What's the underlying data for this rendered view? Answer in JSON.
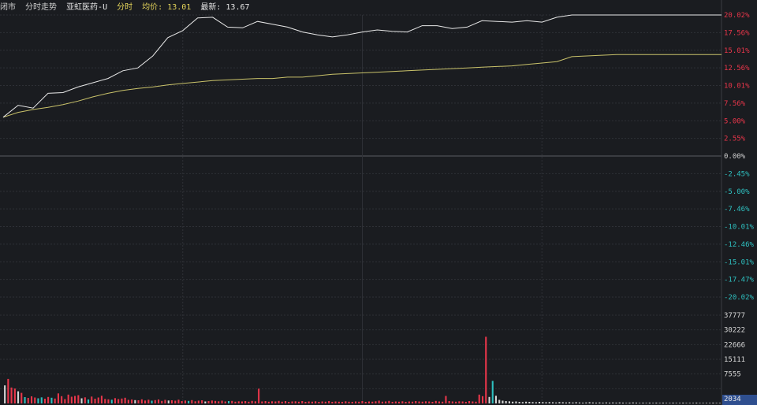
{
  "header": {
    "status": "闭市",
    "mode": "分时走势",
    "stock_name": "亚虹医药-U",
    "fenshi_label": "分时",
    "avg_label": "均价: 13.01",
    "last_label": "最新: 13.67"
  },
  "colors": {
    "background": "#1a1c20",
    "grid": "#2e3036",
    "price_line": "#e8e8e8",
    "avg_line": "#c9c26a",
    "up": "#e8364a",
    "down": "#2ec0c0",
    "neutral": "#d6d6d6",
    "zero": "#cfcfcf"
  },
  "chart_data": [
    {
      "type": "line",
      "title": "分时走势",
      "y_axis_labels": [
        "20.02%",
        "17.56%",
        "15.01%",
        "12.56%",
        "10.01%",
        "7.56%",
        "5.00%",
        "2.55%",
        "0.00%",
        "-2.45%",
        "-5.00%",
        "-7.46%",
        "-10.01%",
        "-12.46%",
        "-15.01%",
        "-17.47%",
        "-20.02%"
      ],
      "ylim": [
        -20.02,
        20.02
      ],
      "x": [
        0,
        5,
        10,
        15,
        20,
        25,
        30,
        35,
        40,
        45,
        50,
        55,
        60,
        65,
        70,
        75,
        80,
        85,
        90,
        95,
        100,
        105,
        110,
        115,
        120,
        125,
        130,
        135,
        140,
        145,
        150,
        155,
        160,
        165,
        170,
        175,
        180,
        185,
        190,
        195,
        200,
        205,
        210,
        215,
        220,
        225,
        230,
        235,
        240
      ],
      "series": [
        {
          "values": [
            5.5,
            7.2,
            6.8,
            8.9,
            9.0,
            9.8,
            10.4,
            11.0,
            12.1,
            12.5,
            14.2,
            16.8,
            17.8,
            19.6,
            19.7,
            18.3,
            18.2,
            19.1,
            18.7,
            18.3,
            17.6,
            17.2,
            16.9,
            17.2,
            17.6,
            17.9,
            17.7,
            17.6,
            18.5,
            18.5,
            18.1,
            18.3,
            19.2,
            19.1,
            19.0,
            19.2,
            19.0,
            19.7,
            20.02,
            20.02,
            20.02,
            20.02,
            20.02,
            20.02,
            20.02,
            20.02,
            20.02,
            20.02,
            20.02
          ]
        },
        {
          "values": [
            5.5,
            6.2,
            6.6,
            6.9,
            7.3,
            7.8,
            8.4,
            8.9,
            9.3,
            9.6,
            9.8,
            10.1,
            10.3,
            10.5,
            10.7,
            10.8,
            10.9,
            11.0,
            11.0,
            11.2,
            11.2,
            11.4,
            11.6,
            11.7,
            11.8,
            11.9,
            12.0,
            12.1,
            12.2,
            12.3,
            12.4,
            12.5,
            12.6,
            12.7,
            12.8,
            13.0,
            13.2,
            13.4,
            14.1,
            14.2,
            14.3,
            14.4,
            14.4,
            14.4,
            14.4,
            14.4,
            14.4,
            14.4,
            14.4
          ]
        }
      ]
    },
    {
      "type": "bar",
      "y_axis_labels": [
        "37777",
        "30222",
        "22666",
        "15111",
        "7555",
        "2034"
      ],
      "ylim": [
        0,
        45000
      ],
      "bars": [
        {
          "v": 9200,
          "c": "neutral"
        },
        {
          "v": 12500,
          "c": "up"
        },
        {
          "v": 8100,
          "c": "up"
        },
        {
          "v": 7600,
          "c": "up"
        },
        {
          "v": 6200,
          "c": "neutral"
        },
        {
          "v": 5400,
          "c": "up"
        },
        {
          "v": 3200,
          "c": "down"
        },
        {
          "v": 2800,
          "c": "up"
        },
        {
          "v": 3600,
          "c": "up"
        },
        {
          "v": 3000,
          "c": "up"
        },
        {
          "v": 2600,
          "c": "down"
        },
        {
          "v": 3100,
          "c": "down"
        },
        {
          "v": 2400,
          "c": "up"
        },
        {
          "v": 3300,
          "c": "up"
        },
        {
          "v": 2900,
          "c": "down"
        },
        {
          "v": 2500,
          "c": "up"
        },
        {
          "v": 5100,
          "c": "up"
        },
        {
          "v": 3700,
          "c": "up"
        },
        {
          "v": 2200,
          "c": "up"
        },
        {
          "v": 4500,
          "c": "up"
        },
        {
          "v": 3400,
          "c": "up"
        },
        {
          "v": 3800,
          "c": "up"
        },
        {
          "v": 4200,
          "c": "up"
        },
        {
          "v": 2600,
          "c": "neutral"
        },
        {
          "v": 3100,
          "c": "up"
        },
        {
          "v": 2000,
          "c": "down"
        },
        {
          "v": 3500,
          "c": "up"
        },
        {
          "v": 2400,
          "c": "up"
        },
        {
          "v": 3000,
          "c": "up"
        },
        {
          "v": 3900,
          "c": "up"
        },
        {
          "v": 2300,
          "c": "up"
        },
        {
          "v": 2100,
          "c": "up"
        },
        {
          "v": 1900,
          "c": "down"
        },
        {
          "v": 2700,
          "c": "up"
        },
        {
          "v": 2200,
          "c": "up"
        },
        {
          "v": 2500,
          "c": "up"
        },
        {
          "v": 2900,
          "c": "up"
        },
        {
          "v": 1800,
          "c": "up"
        },
        {
          "v": 2000,
          "c": "up"
        },
        {
          "v": 1700,
          "c": "neutral"
        },
        {
          "v": 1600,
          "c": "up"
        },
        {
          "v": 2100,
          "c": "up"
        },
        {
          "v": 1500,
          "c": "up"
        },
        {
          "v": 1900,
          "c": "up"
        },
        {
          "v": 1400,
          "c": "down"
        },
        {
          "v": 1700,
          "c": "up"
        },
        {
          "v": 2000,
          "c": "up"
        },
        {
          "v": 1300,
          "c": "up"
        },
        {
          "v": 1800,
          "c": "up"
        },
        {
          "v": 1500,
          "c": "neutral"
        },
        {
          "v": 1600,
          "c": "up"
        },
        {
          "v": 1400,
          "c": "up"
        },
        {
          "v": 1900,
          "c": "up"
        },
        {
          "v": 1200,
          "c": "up"
        },
        {
          "v": 1500,
          "c": "up"
        },
        {
          "v": 1300,
          "c": "down"
        },
        {
          "v": 1700,
          "c": "up"
        },
        {
          "v": 1100,
          "c": "up"
        },
        {
          "v": 1400,
          "c": "up"
        },
        {
          "v": 1600,
          "c": "up"
        },
        {
          "v": 1000,
          "c": "neutral"
        },
        {
          "v": 1200,
          "c": "up"
        },
        {
          "v": 1500,
          "c": "up"
        },
        {
          "v": 1300,
          "c": "up"
        },
        {
          "v": 1100,
          "c": "up"
        },
        {
          "v": 1400,
          "c": "up"
        },
        {
          "v": 1000,
          "c": "up"
        },
        {
          "v": 1200,
          "c": "down"
        },
        {
          "v": 1300,
          "c": "up"
        },
        {
          "v": 900,
          "c": "up"
        },
        {
          "v": 1100,
          "c": "up"
        },
        {
          "v": 1000,
          "c": "up"
        },
        {
          "v": 1200,
          "c": "up"
        },
        {
          "v": 900,
          "c": "up"
        },
        {
          "v": 1300,
          "c": "up"
        },
        {
          "v": 1100,
          "c": "up"
        },
        {
          "v": 7500,
          "c": "up"
        },
        {
          "v": 1000,
          "c": "up"
        },
        {
          "v": 1200,
          "c": "up"
        },
        {
          "v": 900,
          "c": "up"
        },
        {
          "v": 1100,
          "c": "up"
        },
        {
          "v": 1000,
          "c": "up"
        },
        {
          "v": 1300,
          "c": "up"
        },
        {
          "v": 900,
          "c": "up"
        },
        {
          "v": 1200,
          "c": "up"
        },
        {
          "v": 800,
          "c": "up"
        },
        {
          "v": 1000,
          "c": "up"
        },
        {
          "v": 1100,
          "c": "up"
        },
        {
          "v": 900,
          "c": "up"
        },
        {
          "v": 1200,
          "c": "up"
        },
        {
          "v": 800,
          "c": "up"
        },
        {
          "v": 1000,
          "c": "up"
        },
        {
          "v": 900,
          "c": "up"
        },
        {
          "v": 1100,
          "c": "up"
        },
        {
          "v": 800,
          "c": "up"
        },
        {
          "v": 1000,
          "c": "up"
        },
        {
          "v": 900,
          "c": "up"
        },
        {
          "v": 1200,
          "c": "up"
        },
        {
          "v": 800,
          "c": "up"
        },
        {
          "v": 1000,
          "c": "up"
        },
        {
          "v": 900,
          "c": "up"
        },
        {
          "v": 800,
          "c": "up"
        },
        {
          "v": 1100,
          "c": "up"
        },
        {
          "v": 900,
          "c": "up"
        },
        {
          "v": 800,
          "c": "up"
        },
        {
          "v": 1000,
          "c": "up"
        },
        {
          "v": 900,
          "c": "up"
        },
        {
          "v": 1200,
          "c": "up"
        },
        {
          "v": 800,
          "c": "up"
        },
        {
          "v": 1000,
          "c": "up"
        },
        {
          "v": 900,
          "c": "up"
        },
        {
          "v": 1100,
          "c": "up"
        },
        {
          "v": 1400,
          "c": "up"
        },
        {
          "v": 900,
          "c": "up"
        },
        {
          "v": 1000,
          "c": "up"
        },
        {
          "v": 1300,
          "c": "up"
        },
        {
          "v": 800,
          "c": "up"
        },
        {
          "v": 1000,
          "c": "up"
        },
        {
          "v": 900,
          "c": "up"
        },
        {
          "v": 1100,
          "c": "up"
        },
        {
          "v": 800,
          "c": "up"
        },
        {
          "v": 1000,
          "c": "up"
        },
        {
          "v": 900,
          "c": "up"
        },
        {
          "v": 1200,
          "c": "up"
        },
        {
          "v": 1000,
          "c": "up"
        },
        {
          "v": 900,
          "c": "up"
        },
        {
          "v": 1100,
          "c": "up"
        },
        {
          "v": 1000,
          "c": "up"
        },
        {
          "v": 800,
          "c": "up"
        },
        {
          "v": 1300,
          "c": "up"
        },
        {
          "v": 1000,
          "c": "up"
        },
        {
          "v": 900,
          "c": "up"
        },
        {
          "v": 3800,
          "c": "up"
        },
        {
          "v": 1200,
          "c": "up"
        },
        {
          "v": 1000,
          "c": "up"
        },
        {
          "v": 900,
          "c": "up"
        },
        {
          "v": 1100,
          "c": "up"
        },
        {
          "v": 1000,
          "c": "up"
        },
        {
          "v": 800,
          "c": "up"
        },
        {
          "v": 1200,
          "c": "up"
        },
        {
          "v": 1000,
          "c": "up"
        },
        {
          "v": 900,
          "c": "up"
        },
        {
          "v": 4500,
          "c": "up"
        },
        {
          "v": 3700,
          "c": "up"
        },
        {
          "v": 34000,
          "c": "up"
        },
        {
          "v": 3300,
          "c": "neutral"
        },
        {
          "v": 11500,
          "c": "down"
        },
        {
          "v": 3900,
          "c": "neutral"
        },
        {
          "v": 1800,
          "c": "neutral"
        },
        {
          "v": 1400,
          "c": "neutral"
        },
        {
          "v": 1200,
          "c": "neutral"
        },
        {
          "v": 1100,
          "c": "neutral"
        },
        {
          "v": 900,
          "c": "neutral"
        },
        {
          "v": 1000,
          "c": "neutral"
        },
        {
          "v": 800,
          "c": "neutral"
        },
        {
          "v": 700,
          "c": "neutral"
        },
        {
          "v": 900,
          "c": "neutral"
        },
        {
          "v": 800,
          "c": "neutral"
        },
        {
          "v": 700,
          "c": "neutral"
        },
        {
          "v": 600,
          "c": "neutral"
        },
        {
          "v": 800,
          "c": "neutral"
        },
        {
          "v": 700,
          "c": "neutral"
        },
        {
          "v": 600,
          "c": "neutral"
        },
        {
          "v": 700,
          "c": "neutral"
        },
        {
          "v": 600,
          "c": "neutral"
        },
        {
          "v": 500,
          "c": "neutral"
        },
        {
          "v": 700,
          "c": "neutral"
        },
        {
          "v": 600,
          "c": "neutral"
        },
        {
          "v": 500,
          "c": "neutral"
        },
        {
          "v": 600,
          "c": "neutral"
        },
        {
          "v": 500,
          "c": "neutral"
        },
        {
          "v": 600,
          "c": "neutral"
        },
        {
          "v": 500,
          "c": "neutral"
        },
        {
          "v": 400,
          "c": "neutral"
        },
        {
          "v": 500,
          "c": "neutral"
        },
        {
          "v": 600,
          "c": "neutral"
        },
        {
          "v": 500,
          "c": "neutral"
        },
        {
          "v": 400,
          "c": "neutral"
        },
        {
          "v": 500,
          "c": "neutral"
        },
        {
          "v": 400,
          "c": "neutral"
        },
        {
          "v": 500,
          "c": "neutral"
        },
        {
          "v": 400,
          "c": "neutral"
        },
        {
          "v": 500,
          "c": "neutral"
        },
        {
          "v": 400,
          "c": "neutral"
        },
        {
          "v": 500,
          "c": "neutral"
        },
        {
          "v": 400,
          "c": "neutral"
        },
        {
          "v": 300,
          "c": "neutral"
        },
        {
          "v": 400,
          "c": "neutral"
        },
        {
          "v": 500,
          "c": "neutral"
        },
        {
          "v": 400,
          "c": "neutral"
        },
        {
          "v": 300,
          "c": "neutral"
        },
        {
          "v": 400,
          "c": "neutral"
        },
        {
          "v": 300,
          "c": "neutral"
        },
        {
          "v": 400,
          "c": "neutral"
        },
        {
          "v": 300,
          "c": "neutral"
        },
        {
          "v": 400,
          "c": "neutral"
        },
        {
          "v": 300,
          "c": "neutral"
        },
        {
          "v": 400,
          "c": "neutral"
        },
        {
          "v": 300,
          "c": "neutral"
        },
        {
          "v": 300,
          "c": "neutral"
        },
        {
          "v": 400,
          "c": "neutral"
        },
        {
          "v": 300,
          "c": "neutral"
        },
        {
          "v": 300,
          "c": "neutral"
        },
        {
          "v": 400,
          "c": "neutral"
        },
        {
          "v": 300,
          "c": "neutral"
        },
        {
          "v": 300,
          "c": "neutral"
        },
        {
          "v": 300,
          "c": "neutral"
        },
        {
          "v": 400,
          "c": "neutral"
        },
        {
          "v": 300,
          "c": "neutral"
        },
        {
          "v": 300,
          "c": "neutral"
        },
        {
          "v": 300,
          "c": "neutral"
        },
        {
          "v": 300,
          "c": "neutral"
        },
        {
          "v": 400,
          "c": "neutral"
        },
        {
          "v": 300,
          "c": "neutral"
        },
        {
          "v": 300,
          "c": "neutral"
        }
      ]
    }
  ]
}
